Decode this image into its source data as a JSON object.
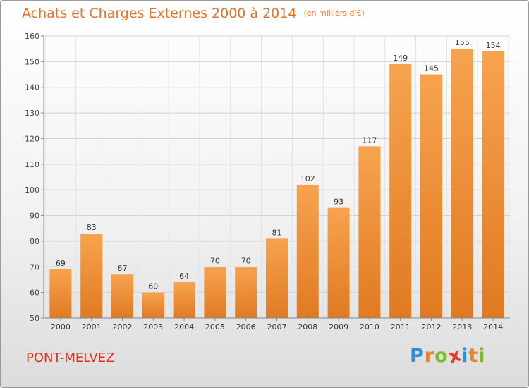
{
  "title": "Achats et Charges Externes 2000 à 2014",
  "unit": "(en milliers d'€)",
  "commune": "PONT-MELVEZ",
  "logo": {
    "letters": [
      "P",
      "r",
      "o",
      "x",
      "i",
      "t",
      "i"
    ],
    "colors": [
      "#2e8fd6",
      "#e8832a",
      "#7cbb2b",
      "#e33b2a",
      "#2e8fd6",
      "#e8832a",
      "#7cbb2b"
    ]
  },
  "colors": {
    "bar_light": "#f7a34e",
    "bar_dark": "#e07a22",
    "title": "#e2752b",
    "commune": "#d9331f"
  },
  "chart_data": {
    "type": "bar",
    "categories": [
      "2000",
      "2001",
      "2002",
      "2003",
      "2004",
      "2005",
      "2006",
      "2007",
      "2008",
      "2009",
      "2010",
      "2011",
      "2012",
      "2013",
      "2014"
    ],
    "values": [
      69,
      83,
      67,
      60,
      64,
      70,
      70,
      81,
      102,
      93,
      117,
      149,
      145,
      155,
      154
    ],
    "ylim": [
      50,
      160
    ],
    "yticks": [
      50,
      60,
      70,
      80,
      90,
      100,
      110,
      120,
      130,
      140,
      150,
      160
    ],
    "grid": true,
    "xlabel": "",
    "ylabel": ""
  }
}
